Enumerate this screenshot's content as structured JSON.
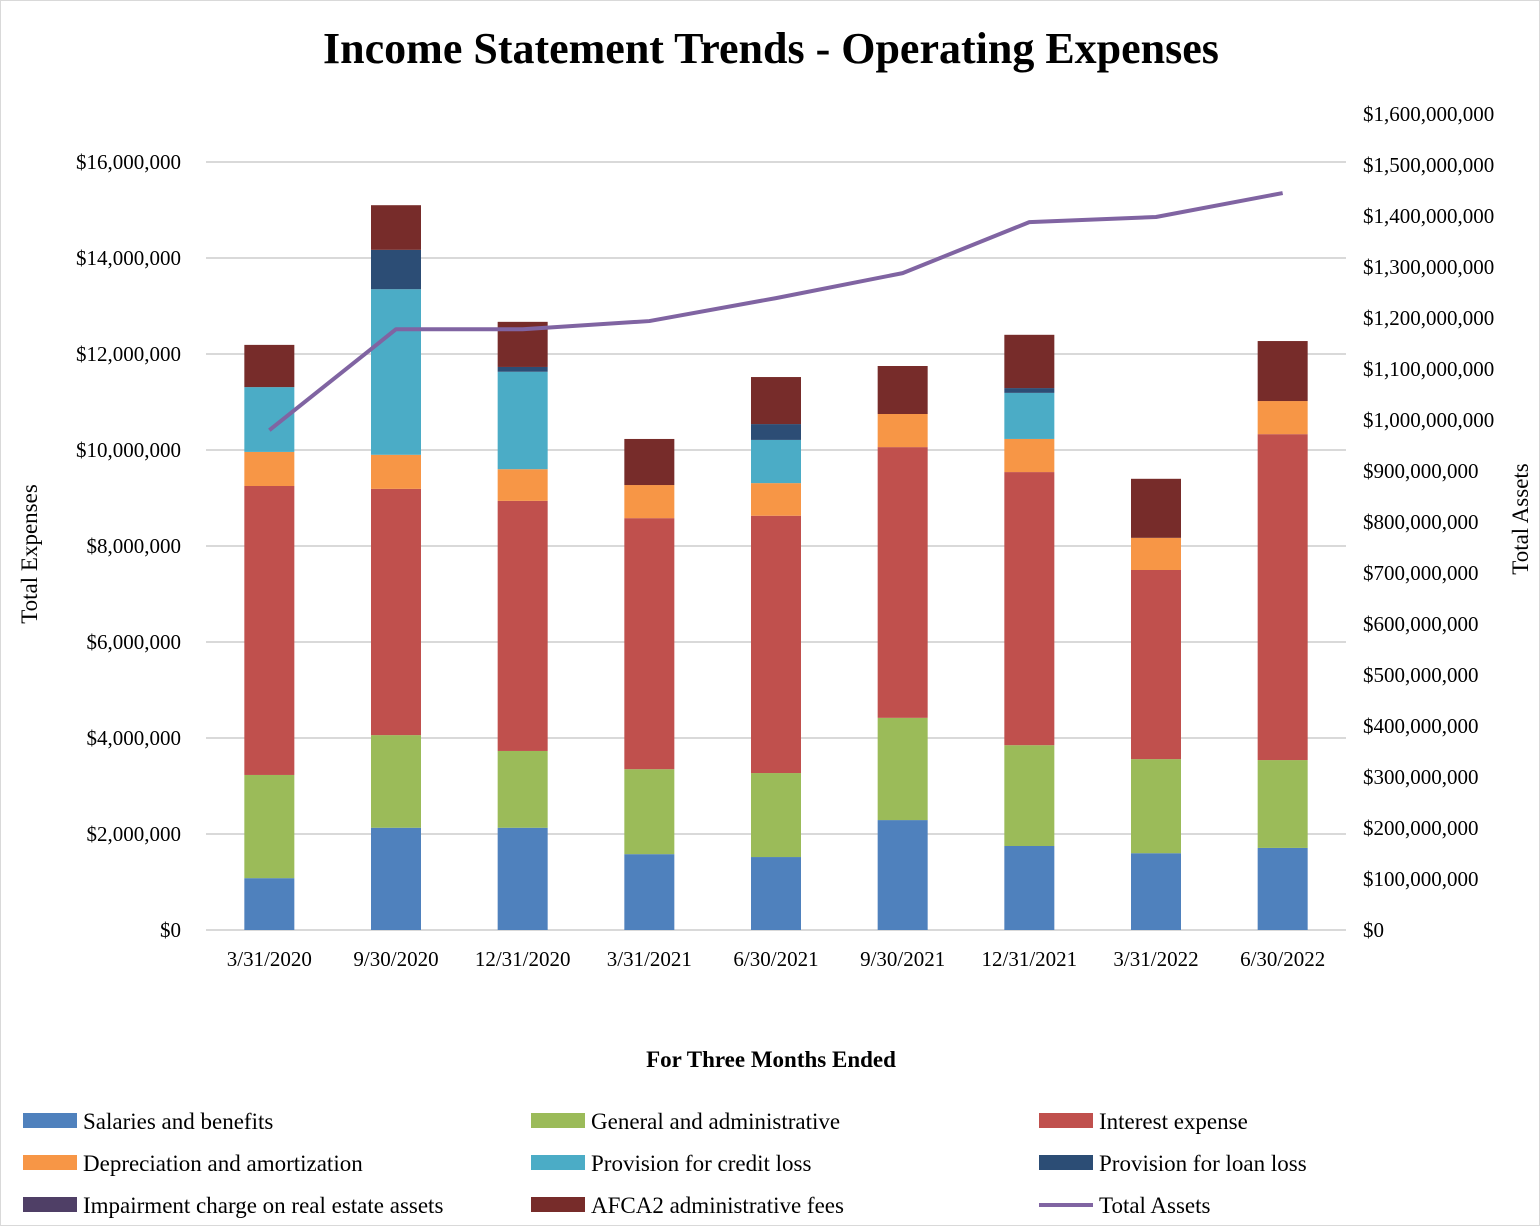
{
  "chart_data": {
    "type": "bar",
    "stacked": true,
    "title": "Income Statement Trends - Operating Expenses",
    "xlabel": "For Three Months Ended",
    "ylabel": "Total Expenses",
    "y2label": "Total Assets",
    "ylim": [
      0,
      16000000
    ],
    "y2lim": [
      0,
      1600000000
    ],
    "y_ticks": [
      "$0",
      "$2,000,000",
      "$4,000,000",
      "$6,000,000",
      "$8,000,000",
      "$10,000,000",
      "$12,000,000",
      "$14,000,000",
      "$16,000,000"
    ],
    "y_tick_values": [
      0,
      2000000,
      4000000,
      6000000,
      8000000,
      10000000,
      12000000,
      14000000,
      16000000
    ],
    "y2_ticks": [
      "$0",
      "$100,000,000",
      "$200,000,000",
      "$300,000,000",
      "$400,000,000",
      "$500,000,000",
      "$600,000,000",
      "$700,000,000",
      "$800,000,000",
      "$900,000,000",
      "$1,000,000,000",
      "$1,100,000,000",
      "$1,200,000,000",
      "$1,300,000,000",
      "$1,400,000,000",
      "$1,500,000,000",
      "$1,600,000,000"
    ],
    "y2_tick_values": [
      0,
      100000000,
      200000000,
      300000000,
      400000000,
      500000000,
      600000000,
      700000000,
      800000000,
      900000000,
      1000000000,
      1100000000,
      1200000000,
      1300000000,
      1400000000,
      1500000000,
      1600000000
    ],
    "grid": true,
    "legend_position": "bottom",
    "categories": [
      "3/31/2020",
      "9/30/2020",
      "12/31/2020",
      "3/31/2021",
      "6/30/2021",
      "9/30/2021",
      "12/31/2021",
      "3/31/2022",
      "6/30/2022"
    ],
    "series": [
      {
        "name": "Salaries and benefits",
        "color": "#4f81bd",
        "values": [
          1080000,
          2130000,
          2130000,
          1580000,
          1520000,
          2290000,
          1750000,
          1600000,
          1710000
        ]
      },
      {
        "name": "General and administrative",
        "color": "#9bbb59",
        "values": [
          2150000,
          1930000,
          1600000,
          1770000,
          1750000,
          2130000,
          2100000,
          1960000,
          1830000
        ]
      },
      {
        "name": "Interest expense",
        "color": "#c0504d",
        "values": [
          6020000,
          5130000,
          5210000,
          5230000,
          5360000,
          5640000,
          5690000,
          3940000,
          6790000
        ]
      },
      {
        "name": "Depreciation and amortization",
        "color": "#f79646",
        "values": [
          710000,
          710000,
          660000,
          690000,
          680000,
          690000,
          690000,
          670000,
          690000
        ]
      },
      {
        "name": "Provision for credit loss",
        "color": "#4bacc6",
        "values": [
          1350000,
          3450000,
          2030000,
          0,
          900000,
          0,
          960000,
          0,
          0
        ]
      },
      {
        "name": "Provision for loan loss",
        "color": "#2c4d75",
        "values": [
          0,
          820000,
          100000,
          0,
          330000,
          0,
          100000,
          0,
          0
        ]
      },
      {
        "name": "Impairment charge on real estate assets",
        "color": "#4f3f66",
        "values": [
          0,
          0,
          0,
          0,
          0,
          0,
          0,
          0,
          0
        ]
      },
      {
        "name": "AFCA2 administrative fees",
        "color": "#772c2a",
        "values": [
          880000,
          930000,
          940000,
          960000,
          980000,
          1000000,
          1110000,
          1230000,
          1250000
        ]
      }
    ],
    "line_series": {
      "name": "Total Assets",
      "axis": "right",
      "color": "#8064a2",
      "values": [
        980000000,
        1178000000,
        1178000000,
        1194000000,
        1239000000,
        1288000000,
        1388000000,
        1398000000,
        1445000000
      ]
    },
    "legend": [
      {
        "label": "Salaries and benefits",
        "color": "#4f81bd",
        "kind": "box"
      },
      {
        "label": "General and administrative",
        "color": "#9bbb59",
        "kind": "box"
      },
      {
        "label": "Interest expense",
        "color": "#c0504d",
        "kind": "box"
      },
      {
        "label": "Depreciation and amortization",
        "color": "#f79646",
        "kind": "box"
      },
      {
        "label": "Provision for credit loss",
        "color": "#4bacc6",
        "kind": "box"
      },
      {
        "label": "Provision for loan loss",
        "color": "#2c4d75",
        "kind": "box"
      },
      {
        "label": "Impairment charge on real estate assets",
        "color": "#4f3f66",
        "kind": "box"
      },
      {
        "label": "AFCA2 administrative fees",
        "color": "#772c2a",
        "kind": "box"
      },
      {
        "label": "Total Assets",
        "color": "#8064a2",
        "kind": "line"
      }
    ]
  }
}
